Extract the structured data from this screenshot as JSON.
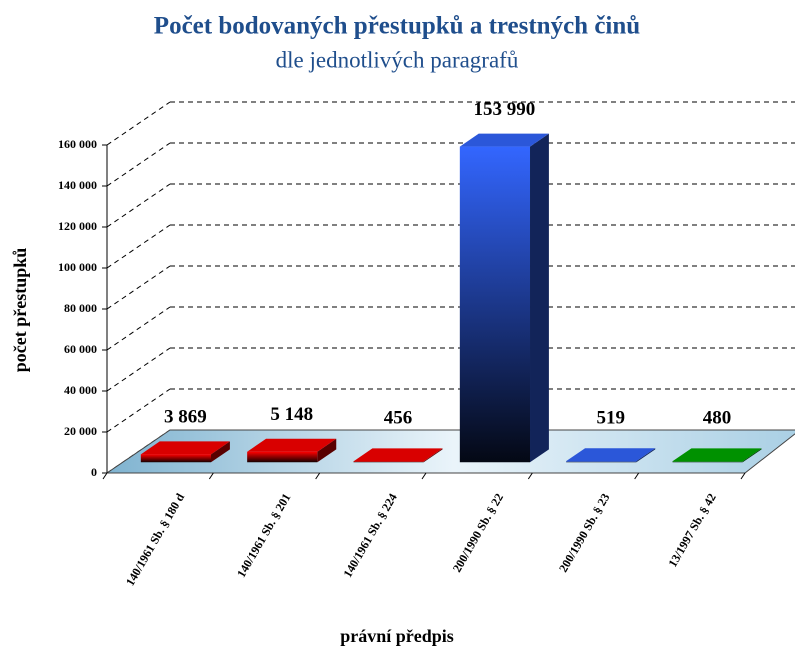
{
  "chart_data": {
    "type": "bar3d",
    "title": "Počet bodovaných přestupků a trestných činů",
    "subtitle": "dle jednotlivých paragrafů",
    "x_label": "právní předpis",
    "y_label": "počet přestupků",
    "categories": [
      "140/1961 Sb. § 180 d",
      "140/1961 Sb. § 201",
      "140/1961 Sb. § 224",
      "200/1990 Sb. § 22",
      "200/1990 Sb. § 23",
      "13/1997 Sb. § 42"
    ],
    "values": [
      3869,
      5148,
      456,
      153990,
      519,
      480
    ],
    "value_labels": [
      "3 869",
      "5 148",
      "456",
      "153 990",
      "519",
      "480"
    ],
    "colors": [
      "#ff0000",
      "#ff0000",
      "#ff0000",
      "#3366ff",
      "#3366ff",
      "#00aa00"
    ],
    "ylim": [
      0,
      160000
    ],
    "yticks": [
      {
        "value": 0,
        "label": "0"
      },
      {
        "value": 20000,
        "label": "20 000"
      },
      {
        "value": 40000,
        "label": "40 000"
      },
      {
        "value": 60000,
        "label": "60 000"
      },
      {
        "value": 80000,
        "label": "80 000"
      },
      {
        "value": 100000,
        "label": "100 000"
      },
      {
        "value": 120000,
        "label": "120 000"
      },
      {
        "value": 140000,
        "label": "140 000"
      },
      {
        "value": 160000,
        "label": "160 000"
      }
    ],
    "grid": true
  }
}
